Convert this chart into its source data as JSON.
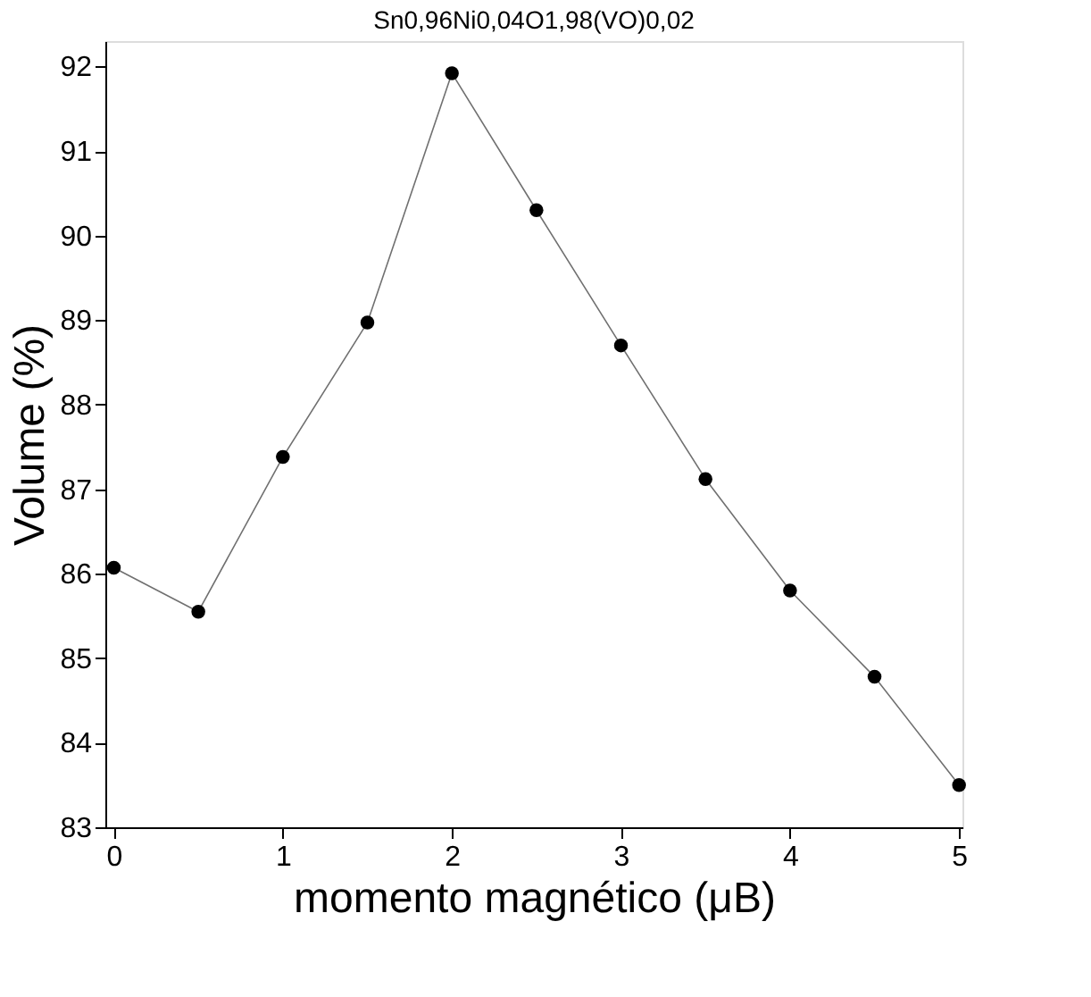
{
  "chart_data": {
    "type": "line",
    "title": "Sn0,96Ni0,04O1,98(VO)0,02",
    "xlabel": "momento magnético (μB)",
    "ylabel": "Volume (%)",
    "x": [
      0,
      0.5,
      1,
      1.5,
      2,
      2.5,
      3,
      3.5,
      4,
      4.5,
      5
    ],
    "series": [
      {
        "color": "#000000",
        "values": [
          86.07,
          85.55,
          87.38,
          88.97,
          91.92,
          90.3,
          88.7,
          87.12,
          85.8,
          84.78,
          83.5
        ]
      }
    ],
    "xlim": [
      -0.05,
      5.02
    ],
    "ylim": [
      83,
      92.3
    ],
    "xticks": [
      0,
      1,
      2,
      3,
      4,
      5
    ],
    "yticks": [
      83,
      84,
      85,
      86,
      87,
      88,
      89,
      90,
      91,
      92
    ],
    "marker": "circle",
    "line_style": "solid",
    "grid": false
  }
}
